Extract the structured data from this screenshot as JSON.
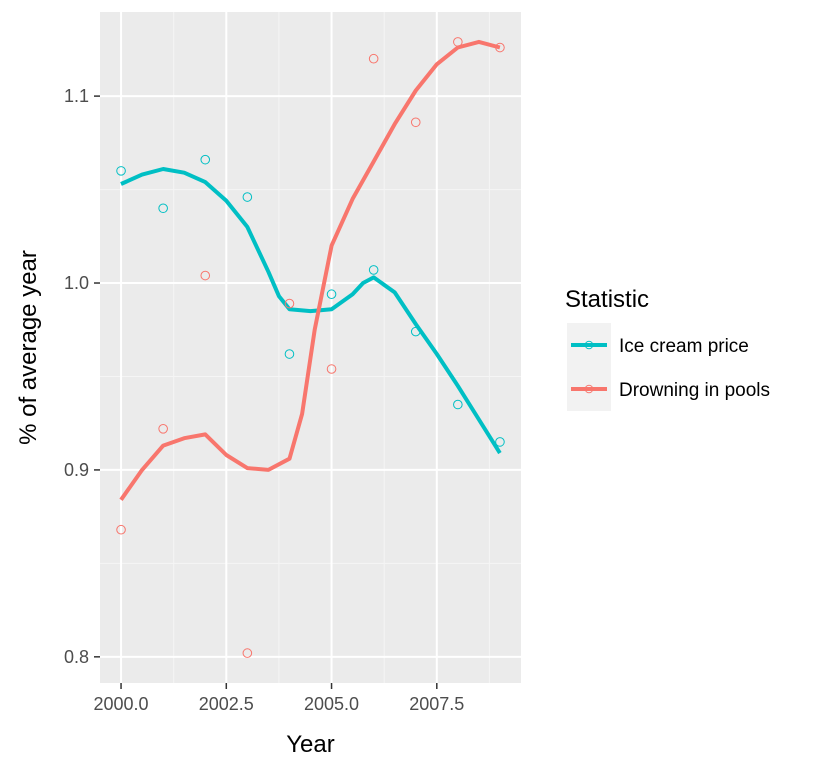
{
  "chart_data": {
    "type": "scatter",
    "xlabel": "Year",
    "ylabel": "% of average year",
    "xlim": [
      1999.5,
      2009.5
    ],
    "ylim": [
      0.786,
      1.145
    ],
    "x_ticks": [
      2000,
      2002.5,
      2005,
      2007.5
    ],
    "x_tick_labels": [
      "2000.0",
      "2002.5",
      "2005.0",
      "2007.5"
    ],
    "y_ticks": [
      0.8,
      0.9,
      1.0,
      1.1
    ],
    "y_tick_labels": [
      "0.8",
      "0.9",
      "1.0",
      "1.1"
    ],
    "grid": true,
    "background": "#ebebeb",
    "legend": {
      "title": "Statistic",
      "position": "right",
      "entries": [
        "Ice cream price",
        "Drowning in pools"
      ]
    },
    "series": [
      {
        "name": "Ice cream price",
        "color": "#00bfc4",
        "points": [
          [
            2000,
            1.06
          ],
          [
            2001,
            1.04
          ],
          [
            2002,
            1.066
          ],
          [
            2003,
            1.046
          ],
          [
            2004,
            0.962
          ],
          [
            2005,
            0.994
          ],
          [
            2006,
            1.007
          ],
          [
            2007,
            0.974
          ],
          [
            2008,
            0.935
          ],
          [
            2009,
            0.915
          ]
        ],
        "smooth": [
          [
            2000,
            1.053
          ],
          [
            2000.5,
            1.058
          ],
          [
            2001,
            1.061
          ],
          [
            2001.5,
            1.059
          ],
          [
            2002,
            1.054
          ],
          [
            2002.5,
            1.044
          ],
          [
            2003,
            1.03
          ],
          [
            2003.5,
            1.006
          ],
          [
            2003.75,
            0.993
          ],
          [
            2004,
            0.986
          ],
          [
            2004.5,
            0.985
          ],
          [
            2005,
            0.986
          ],
          [
            2005.5,
            0.994
          ],
          [
            2005.75,
            1.0
          ],
          [
            2006,
            1.003
          ],
          [
            2006.5,
            0.995
          ],
          [
            2007,
            0.978
          ],
          [
            2007.5,
            0.962
          ],
          [
            2008,
            0.945
          ],
          [
            2008.5,
            0.927
          ],
          [
            2009,
            0.909
          ]
        ]
      },
      {
        "name": "Drowning in pools",
        "color": "#f8766d",
        "points": [
          [
            2000,
            0.868
          ],
          [
            2001,
            0.922
          ],
          [
            2002,
            1.004
          ],
          [
            2003,
            0.802
          ],
          [
            2004,
            0.989
          ],
          [
            2005,
            0.954
          ],
          [
            2006,
            1.12
          ],
          [
            2007,
            1.086
          ],
          [
            2008,
            1.129
          ],
          [
            2009,
            1.126
          ]
        ],
        "smooth": [
          [
            2000,
            0.884
          ],
          [
            2000.5,
            0.9
          ],
          [
            2001,
            0.913
          ],
          [
            2001.5,
            0.917
          ],
          [
            2002,
            0.919
          ],
          [
            2002.5,
            0.908
          ],
          [
            2003,
            0.901
          ],
          [
            2003.5,
            0.9
          ],
          [
            2004,
            0.906
          ],
          [
            2004.3,
            0.93
          ],
          [
            2004.6,
            0.975
          ],
          [
            2005,
            1.02
          ],
          [
            2005.5,
            1.045
          ],
          [
            2006,
            1.065
          ],
          [
            2006.5,
            1.085
          ],
          [
            2007,
            1.103
          ],
          [
            2007.5,
            1.117
          ],
          [
            2008,
            1.126
          ],
          [
            2008.5,
            1.129
          ],
          [
            2009,
            1.126
          ]
        ]
      }
    ]
  }
}
